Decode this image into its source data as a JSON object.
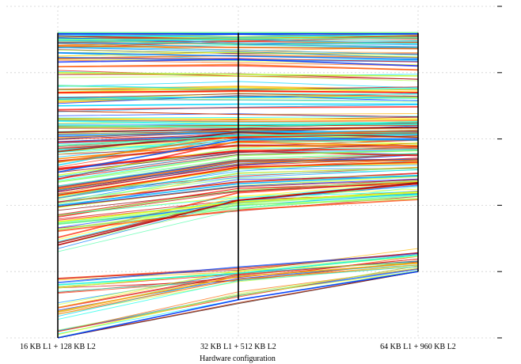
{
  "chart_data": {
    "type": "line",
    "chart_style": "parallel-coordinates",
    "categories": [
      "16 KB L1 + 128 KB L2",
      "32 KB L1 + 512 KB L2",
      "64 KB L1 + 960 KB L2"
    ],
    "xlabel": "Hardware configuration",
    "ylabel": "",
    "title": "",
    "ylim": [
      0,
      100
    ],
    "yticks": [
      0,
      20,
      40,
      60,
      80,
      100
    ],
    "ytick_labels_visible": false,
    "grid": true,
    "legend": "none",
    "line_count_approx": 250,
    "colormap": "rainbow",
    "series_summary": [
      {
        "values": [
          91.7,
          91.7,
          91.7
        ]
      },
      {
        "values": [
          90.0,
          90.2,
          90.5
        ]
      },
      {
        "values": [
          88.0,
          87.6,
          87.2
        ]
      },
      {
        "values": [
          86.0,
          85.0,
          84.0
        ]
      },
      {
        "values": [
          80.0,
          79.5,
          79.0
        ]
      },
      {
        "values": [
          74.0,
          74.5,
          74.0
        ]
      },
      {
        "values": [
          70.0,
          70.5,
          70.5
        ]
      },
      {
        "values": [
          66.0,
          66.0,
          66.0
        ]
      },
      {
        "values": [
          62.0,
          63.0,
          63.5
        ]
      },
      {
        "values": [
          58.0,
          61.0,
          61.5
        ]
      },
      {
        "values": [
          54.0,
          59.0,
          58.0
        ]
      },
      {
        "values": [
          50.0,
          60.0,
          60.0
        ]
      },
      {
        "values": [
          47.0,
          55.0,
          56.5
        ]
      },
      {
        "values": [
          43.0,
          51.5,
          53.0
        ]
      },
      {
        "values": [
          40.0,
          46.5,
          49.0
        ]
      },
      {
        "values": [
          35.0,
          41.0,
          44.0
        ]
      },
      {
        "values": [
          28.0,
          41.5,
          46.5
        ]
      },
      {
        "values": [
          16.0,
          19.5,
          25.0
        ]
      },
      {
        "values": [
          8.0,
          18.5,
          22.5
        ]
      },
      {
        "values": [
          0.0,
          11.5,
          20.0
        ]
      }
    ]
  }
}
